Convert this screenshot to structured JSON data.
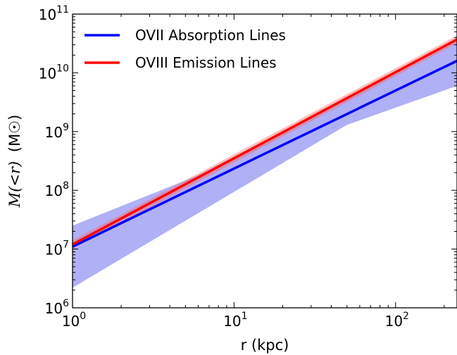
{
  "chart_data": {
    "type": "line",
    "xscale": "log",
    "yscale": "log",
    "xlim": [
      1,
      240
    ],
    "ylim": [
      1000000,
      100000000000
    ],
    "xlabel": "r (kpc)",
    "ylabel": "M(<r) (M☉)",
    "ylabel_italic_part": "M(<r)",
    "ylabel_unit_part": "(M☉)",
    "x_ticks": [
      {
        "value": 1,
        "base": "10",
        "exp": "0"
      },
      {
        "value": 10,
        "base": "10",
        "exp": "1"
      },
      {
        "value": 100,
        "base": "10",
        "exp": "2"
      }
    ],
    "y_ticks": [
      {
        "value": 1000000,
        "base": "10",
        "exp": "6"
      },
      {
        "value": 10000000,
        "base": "10",
        "exp": "7"
      },
      {
        "value": 100000000,
        "base": "10",
        "exp": "8"
      },
      {
        "value": 1000000000,
        "base": "10",
        "exp": "9"
      },
      {
        "value": 10000000000,
        "base": "10",
        "exp": "10"
      },
      {
        "value": 100000000000,
        "base": "10",
        "exp": "11"
      }
    ],
    "legend_position": "top-left",
    "series": [
      {
        "name": "OVII Absorption Lines",
        "color": "#0000ff",
        "band_color": "#7070ee",
        "x": [
          1,
          240
        ],
        "y": [
          11000000,
          16000000000
        ],
        "band_upper": [
          [
            1,
            25000000
          ],
          [
            6,
            180000000
          ],
          [
            240,
            35000000000
          ]
        ],
        "band_lower": [
          [
            1,
            2200000
          ],
          [
            50,
            1300000000
          ],
          [
            240,
            6000000000
          ]
        ]
      },
      {
        "name": "OVIII Emission Lines",
        "color": "#ff0000",
        "band_color": "#ff6666",
        "x": [
          1,
          240
        ],
        "y": [
          12000000,
          37000000000
        ],
        "band_upper": [
          [
            1,
            14000000
          ],
          [
            240,
            43000000000
          ]
        ],
        "band_lower": [
          [
            1,
            10000000
          ],
          [
            240,
            32000000000
          ]
        ]
      }
    ]
  }
}
